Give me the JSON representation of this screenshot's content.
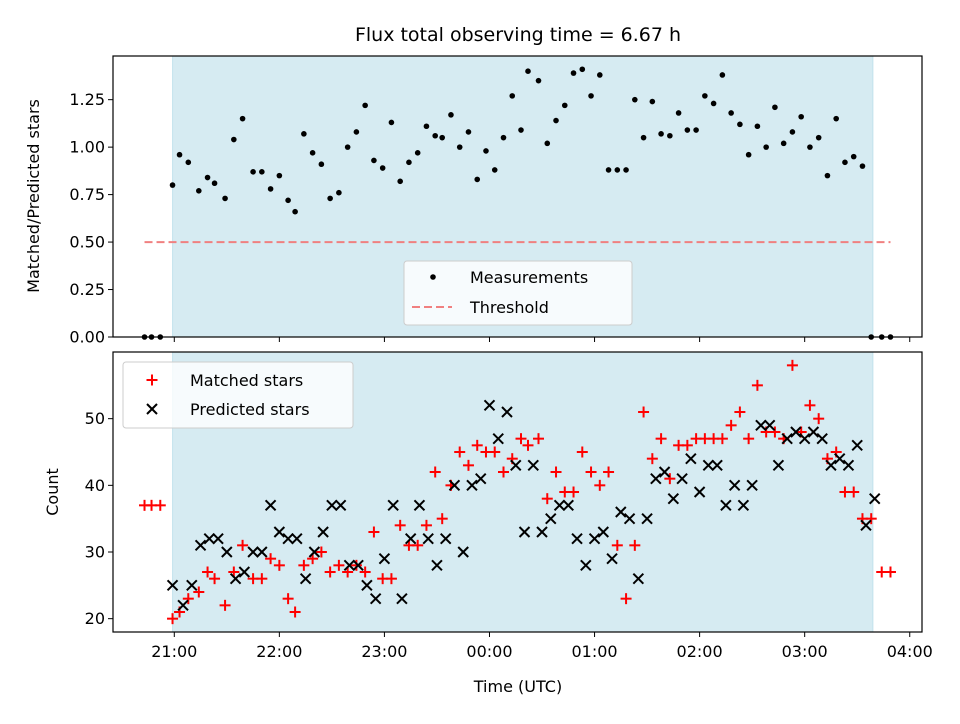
{
  "chart_data": [
    {
      "type": "scatter",
      "title": "Flux total observing time = 6.67 h",
      "ylabel": "Matched/Predicted stars",
      "xlim": [
        "20:25",
        "04:07"
      ],
      "ylim": [
        0,
        1.48
      ],
      "yticks": [
        "0.00",
        "0.25",
        "0.50",
        "0.75",
        "1.00",
        "1.25"
      ],
      "grid": false,
      "legend_position": "lower-center",
      "observing_window": [
        "20:59",
        "03:39"
      ],
      "threshold": {
        "name": "Threshold",
        "value": 0.5,
        "x_range": [
          "20:43",
          "03:49"
        ],
        "color": "#f08080"
      },
      "series": [
        {
          "name": "Measurements",
          "color": "#000000",
          "x": [
            "20:43",
            "20:47",
            "20:52",
            "20:59",
            "21:03",
            "21:08",
            "21:14",
            "21:19",
            "21:23",
            "21:29",
            "21:34",
            "21:39",
            "21:45",
            "21:50",
            "21:55",
            "22:00",
            "22:05",
            "22:09",
            "22:14",
            "22:19",
            "22:24",
            "22:29",
            "22:34",
            "22:39",
            "22:44",
            "22:49",
            "22:54",
            "22:59",
            "23:04",
            "23:09",
            "23:14",
            "23:19",
            "23:24",
            "23:29",
            "23:33",
            "23:38",
            "23:43",
            "23:48",
            "23:53",
            "23:58",
            "00:03",
            "00:08",
            "00:13",
            "00:18",
            "00:22",
            "00:28",
            "00:33",
            "00:38",
            "00:43",
            "00:48",
            "00:53",
            "00:58",
            "01:03",
            "01:08",
            "01:13",
            "01:18",
            "01:23",
            "01:28",
            "01:33",
            "01:38",
            "01:43",
            "01:48",
            "01:53",
            "01:58",
            "02:03",
            "02:08",
            "02:13",
            "02:18",
            "02:23",
            "02:28",
            "02:33",
            "02:38",
            "02:43",
            "02:48",
            "02:53",
            "02:58",
            "03:03",
            "03:08",
            "03:13",
            "03:18",
            "03:23",
            "03:28",
            "03:33",
            "03:38",
            "03:44",
            "03:49"
          ],
          "y": [
            0.0,
            0.0,
            0.0,
            0.8,
            0.96,
            0.92,
            0.77,
            0.84,
            0.81,
            0.73,
            1.04,
            1.15,
            0.87,
            0.87,
            0.78,
            0.85,
            0.72,
            0.66,
            1.07,
            0.97,
            0.91,
            0.73,
            0.76,
            1.0,
            1.08,
            1.22,
            0.93,
            0.89,
            1.13,
            0.82,
            0.92,
            0.97,
            1.11,
            1.06,
            1.05,
            1.17,
            1.0,
            1.08,
            0.83,
            0.98,
            0.88,
            1.05,
            1.27,
            1.09,
            1.4,
            1.35,
            1.02,
            1.14,
            1.22,
            1.39,
            1.41,
            1.27,
            1.38,
            0.88,
            0.88,
            0.88,
            1.25,
            1.05,
            1.24,
            1.07,
            1.06,
            1.18,
            1.09,
            1.09,
            1.27,
            1.23,
            1.38,
            1.18,
            1.12,
            0.96,
            1.11,
            1.0,
            1.21,
            1.02,
            1.08,
            1.16,
            1.0,
            1.05,
            0.85,
            1.15,
            0.92,
            0.95,
            0.9,
            0.0,
            0.0,
            0.0
          ]
        }
      ]
    },
    {
      "type": "scatter",
      "xlabel": "Time (UTC)",
      "ylabel": "Count",
      "xlim": [
        "20:25",
        "04:07"
      ],
      "ylim": [
        18,
        60
      ],
      "xticks": [
        "21:00",
        "22:00",
        "23:00",
        "00:00",
        "01:00",
        "02:00",
        "03:00",
        "04:00"
      ],
      "yticks": [
        "20",
        "30",
        "40",
        "50"
      ],
      "grid": false,
      "legend_position": "upper-left",
      "observing_window": [
        "20:59",
        "03:39"
      ],
      "series": [
        {
          "name": "Matched stars",
          "marker": "+",
          "color": "#ff0000",
          "x": [
            "20:43",
            "20:47",
            "20:52",
            "20:59",
            "21:03",
            "21:08",
            "21:14",
            "21:19",
            "21:23",
            "21:29",
            "21:34",
            "21:39",
            "21:45",
            "21:50",
            "21:55",
            "22:00",
            "22:05",
            "22:09",
            "22:14",
            "22:19",
            "22:24",
            "22:29",
            "22:34",
            "22:39",
            "22:44",
            "22:49",
            "22:54",
            "22:59",
            "23:04",
            "23:09",
            "23:14",
            "23:19",
            "23:24",
            "23:29",
            "23:33",
            "23:38",
            "23:43",
            "23:48",
            "23:53",
            "23:58",
            "00:03",
            "00:08",
            "00:13",
            "00:18",
            "00:22",
            "00:28",
            "00:33",
            "00:38",
            "00:43",
            "00:48",
            "00:53",
            "00:58",
            "01:03",
            "01:08",
            "01:13",
            "01:18",
            "01:23",
            "01:28",
            "01:33",
            "01:38",
            "01:43",
            "01:48",
            "01:53",
            "01:58",
            "02:03",
            "02:08",
            "02:13",
            "02:18",
            "02:23",
            "02:28",
            "02:33",
            "02:38",
            "02:43",
            "02:48",
            "02:53",
            "02:58",
            "03:03",
            "03:08",
            "03:13",
            "03:18",
            "03:23",
            "03:28",
            "03:33",
            "03:38",
            "03:44",
            "03:49"
          ],
          "y": [
            37,
            37,
            37,
            20,
            21,
            23,
            24,
            27,
            26,
            22,
            27,
            31,
            26,
            26,
            29,
            28,
            23,
            21,
            28,
            29,
            30,
            27,
            28,
            27,
            28,
            27,
            33,
            26,
            26,
            34,
            31,
            31,
            34,
            42,
            35,
            40,
            45,
            43,
            46,
            45,
            45,
            42,
            44,
            47,
            46,
            47,
            38,
            42,
            39,
            39,
            45,
            42,
            40,
            42,
            31,
            23,
            31,
            51,
            44,
            47,
            41,
            46,
            46,
            47,
            47,
            47,
            47,
            49,
            51,
            47,
            55,
            48,
            48,
            47,
            58,
            48,
            52,
            50,
            44,
            45,
            39,
            39,
            35,
            35,
            27,
            27
          ]
        },
        {
          "name": "Predicted stars",
          "marker": "x",
          "color": "#000000",
          "x": [
            "20:59",
            "21:05",
            "21:10",
            "21:15",
            "21:20",
            "21:25",
            "21:30",
            "21:35",
            "21:40",
            "21:45",
            "21:50",
            "21:55",
            "22:00",
            "22:05",
            "22:10",
            "22:15",
            "22:20",
            "22:25",
            "22:30",
            "22:35",
            "22:40",
            "22:45",
            "22:50",
            "22:55",
            "23:00",
            "23:05",
            "23:10",
            "23:15",
            "23:20",
            "23:25",
            "23:30",
            "23:35",
            "23:40",
            "23:45",
            "23:50",
            "23:55",
            "00:00",
            "00:05",
            "00:10",
            "00:15",
            "00:20",
            "00:25",
            "00:30",
            "00:35",
            "00:40",
            "00:45",
            "00:50",
            "00:55",
            "01:00",
            "01:05",
            "01:10",
            "01:15",
            "01:20",
            "01:25",
            "01:30",
            "01:35",
            "01:40",
            "01:45",
            "01:50",
            "01:55",
            "02:00",
            "02:05",
            "02:10",
            "02:15",
            "02:20",
            "02:25",
            "02:30",
            "02:35",
            "02:40",
            "02:45",
            "02:50",
            "02:55",
            "03:00",
            "03:05",
            "03:10",
            "03:15",
            "03:20",
            "03:25",
            "03:30",
            "03:35",
            "03:40"
          ],
          "y": [
            25,
            22,
            25,
            31,
            32,
            32,
            30,
            26,
            27,
            30,
            30,
            37,
            33,
            32,
            32,
            26,
            30,
            33,
            37,
            37,
            28,
            28,
            25,
            23,
            29,
            37,
            23,
            32,
            37,
            32,
            28,
            32,
            40,
            30,
            40,
            41,
            52,
            47,
            51,
            43,
            33,
            43,
            33,
            35,
            37,
            37,
            32,
            28,
            32,
            33,
            29,
            36,
            35,
            26,
            35,
            41,
            42,
            38,
            41,
            44,
            39,
            43,
            43,
            37,
            40,
            37,
            40,
            49,
            49,
            43,
            47,
            48,
            47,
            48,
            47,
            43,
            44,
            43,
            46,
            34,
            38
          ]
        }
      ]
    }
  ]
}
